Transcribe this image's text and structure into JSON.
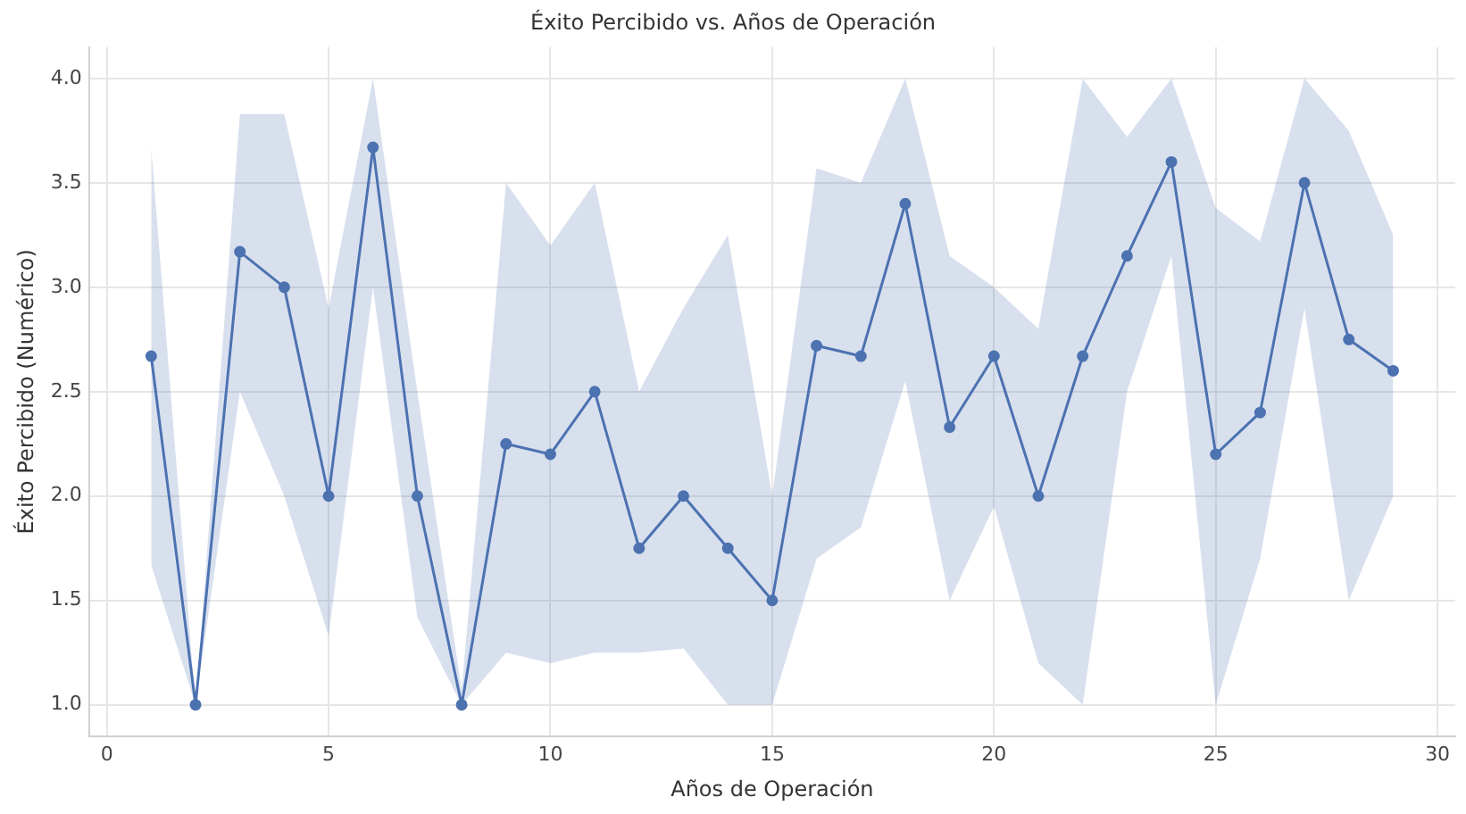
{
  "chart_data": {
    "type": "line",
    "title": "Éxito Percibido vs. Años de Operación",
    "xlabel": "Años de Operación",
    "ylabel": "Éxito Percibido (Numérico)",
    "x": [
      1,
      2,
      3,
      4,
      5,
      6,
      7,
      8,
      9,
      10,
      11,
      12,
      13,
      14,
      15,
      16,
      17,
      18,
      19,
      20,
      21,
      22,
      23,
      24,
      25,
      26,
      27,
      28,
      29
    ],
    "series": [
      {
        "color": "#4c72b0",
        "values": [
          2.67,
          1.0,
          3.17,
          3.0,
          2.0,
          3.67,
          2.0,
          1.0,
          2.25,
          2.2,
          2.5,
          1.75,
          2.0,
          1.75,
          1.5,
          2.72,
          2.67,
          3.4,
          2.33,
          2.67,
          2.0,
          2.67,
          3.15,
          3.6,
          2.2,
          2.4,
          3.5,
          2.75,
          2.6
        ],
        "lower": [
          1.67,
          1.0,
          2.5,
          2.0,
          1.33,
          3.0,
          1.42,
          1.0,
          1.25,
          1.2,
          1.25,
          1.25,
          1.27,
          1.0,
          1.0,
          1.7,
          1.85,
          2.55,
          1.5,
          1.95,
          1.2,
          1.0,
          2.5,
          3.15,
          1.0,
          1.7,
          2.9,
          1.5,
          2.0
        ],
        "upper": [
          3.67,
          1.0,
          3.83,
          3.83,
          2.9,
          4.0,
          2.5,
          1.07,
          3.5,
          3.2,
          3.5,
          2.5,
          2.9,
          3.25,
          2.0,
          3.57,
          3.5,
          4.0,
          3.15,
          3.0,
          2.8,
          4.0,
          3.72,
          4.0,
          3.38,
          3.22,
          4.0,
          3.75,
          3.25
        ]
      }
    ],
    "xlim": [
      -0.4,
      30.4
    ],
    "xticks": [
      0,
      5,
      10,
      15,
      20,
      25,
      30
    ],
    "ylim": [
      0.85,
      4.15
    ],
    "yticks": [
      {
        "value": 1,
        "label": "1.0"
      },
      {
        "value": 1.5,
        "label": "1.5"
      },
      {
        "value": 2,
        "label": "2.0"
      },
      {
        "value": 2.5,
        "label": "2.5"
      },
      {
        "value": 3,
        "label": "3.0"
      },
      {
        "value": 3.5,
        "label": "3.5"
      },
      {
        "value": 4,
        "label": "4.0"
      }
    ],
    "grid": true,
    "marker": "circle",
    "line_style": "solid"
  }
}
